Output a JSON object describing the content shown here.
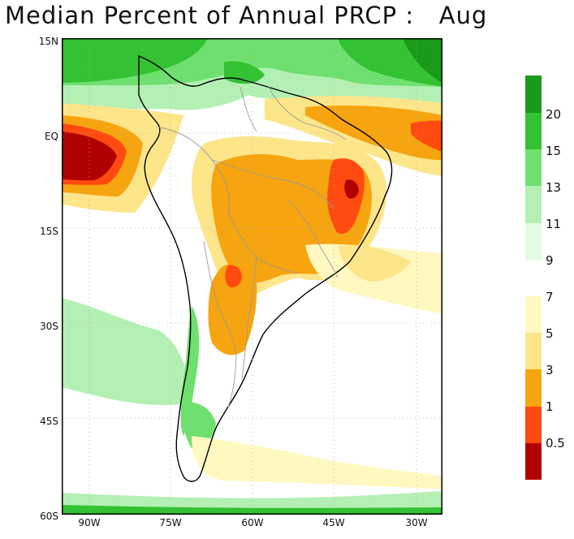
{
  "title": "Median Percent of Annual PRCP :   Aug",
  "lat_labels": [
    "15N",
    "EQ",
    "15S",
    "30S",
    "45S",
    "60S"
  ],
  "lon_labels": [
    "90W",
    "75W",
    "60W",
    "45W",
    "30W"
  ],
  "colorbar": {
    "upper_labels": [
      "20",
      "15",
      "13",
      "11",
      "9"
    ],
    "lower_labels": [
      "7",
      "5",
      "3",
      "1",
      "0.5"
    ],
    "upper_colors": [
      "#1a9a1a",
      "#33c233",
      "#6fe06f",
      "#b4f0b4",
      "#e4fbe4"
    ],
    "lower_colors": [
      "#fff8c0",
      "#fde58a",
      "#f6a40f",
      "#ff4a10",
      "#b00000"
    ]
  },
  "palette": {
    "ocean_white": "#ffffff",
    "coast": "#000000",
    "border": "#9a9a9a",
    "grid": "#aaaaaa"
  }
}
